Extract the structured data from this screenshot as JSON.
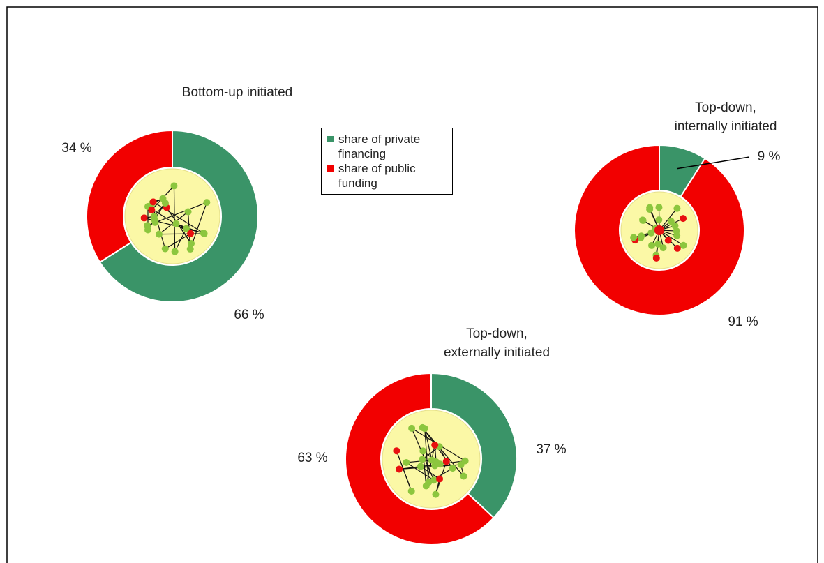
{
  "chart_data": [
    {
      "type": "pie",
      "title": [
        "Bottom-up initiated"
      ],
      "values": [
        66,
        34
      ],
      "value_labels": [
        "66 %",
        "34 %"
      ],
      "colors": [
        "#3a9468",
        "#f20000"
      ]
    },
    {
      "type": "pie",
      "title": [
        "Top-down,",
        "internally initiated"
      ],
      "values": [
        9,
        91
      ],
      "value_labels": [
        "9 %",
        "91 %"
      ],
      "colors": [
        "#3a9468",
        "#f20000"
      ]
    },
    {
      "type": "pie",
      "title": [
        "Top-down,",
        "externally initiated"
      ],
      "values": [
        37,
        63
      ],
      "value_labels": [
        "37 %",
        "63 %"
      ],
      "colors": [
        "#3a9468",
        "#f20000"
      ]
    }
  ],
  "legend": {
    "items": [
      "share of private financing",
      "share of public funding"
    ],
    "colors": [
      "#3a9468",
      "#f20000"
    ]
  }
}
